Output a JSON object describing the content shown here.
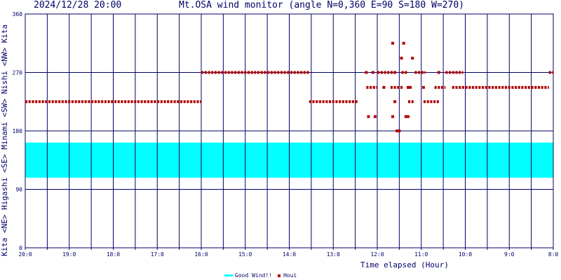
{
  "header": {
    "timestamp": "2024/12/28 20:00",
    "title": "Mt.OSA wind monitor (angle N=0,360 E=90 S=180 W=270)"
  },
  "direction_labels": [
    {
      "text": "Kita <NE> Higashi <SE> Minami <SW> Nishi <NW> Kita"
    }
  ],
  "legend": {
    "good_wind": "Good Wind!!",
    "houi": "Houi"
  },
  "colors": {
    "axis": "#000066",
    "good_band": "#00ffff",
    "houi": "#b00000"
  },
  "chart_data": {
    "type": "scatter",
    "title": "Mt.OSA wind monitor (angle N=0,360 E=90 S=180 W=270)",
    "xlabel": "Time elapsed (Hour)",
    "ylabel": "",
    "x_tick_labels": [
      "20:0",
      "19:0",
      "18:0",
      "17:0",
      "16:0",
      "15:0",
      "14:0",
      "13:0",
      "12:0",
      "11:0",
      "10:0",
      "9:0",
      "8:0"
    ],
    "y_tick_labels": [
      "0",
      "90",
      "180",
      "270",
      "360"
    ],
    "xlim": [
      0,
      12
    ],
    "ylim": [
      0,
      360
    ],
    "grid": true,
    "good_wind_band": [
      108,
      162
    ],
    "series": [
      {
        "name": "Houi",
        "segments": [
          {
            "x": [
              0.0,
              4.0
            ],
            "y": 225
          },
          {
            "x": [
              4.0,
              6.45
            ],
            "y": 270
          },
          {
            "x": [
              6.45,
              7.55
            ],
            "y": 225
          },
          {
            "x": [
              7.75,
              8.0
            ],
            "y": 247
          },
          {
            "x": [
              8.0,
              8.35
            ],
            "y": 270
          },
          {
            "x": [
              8.3,
              8.6
            ],
            "y": 247
          },
          {
            "x": [
              8.55,
              8.7
            ],
            "y": 270
          },
          {
            "x": [
              8.7,
              8.85
            ],
            "y": 225
          },
          {
            "x": [
              8.85,
              9.1
            ],
            "y": 270
          },
          {
            "x": [
              9.05,
              9.4
            ],
            "y": 225
          },
          {
            "x": [
              9.3,
              9.55
            ],
            "y": 247
          },
          {
            "x": [
              9.55,
              9.95
            ],
            "y": 270
          },
          {
            "x": [
              9.7,
              11.9
            ],
            "y": 247
          },
          {
            "x": [
              11.9,
              12.0
            ],
            "y": 270
          }
        ],
        "points": [
          {
            "x": 7.75,
            "y": 270
          },
          {
            "x": 7.9,
            "y": 270
          },
          {
            "x": 7.8,
            "y": 202
          },
          {
            "x": 7.95,
            "y": 202
          },
          {
            "x": 8.15,
            "y": 247
          },
          {
            "x": 8.35,
            "y": 315
          },
          {
            "x": 8.4,
            "y": 225
          },
          {
            "x": 8.35,
            "y": 202
          },
          {
            "x": 8.4,
            "y": 270
          },
          {
            "x": 8.45,
            "y": 180
          },
          {
            "x": 8.5,
            "y": 180
          },
          {
            "x": 8.55,
            "y": 292
          },
          {
            "x": 8.6,
            "y": 315
          },
          {
            "x": 8.65,
            "y": 202
          },
          {
            "x": 8.7,
            "y": 202
          },
          {
            "x": 8.7,
            "y": 247
          },
          {
            "x": 8.75,
            "y": 247
          },
          {
            "x": 8.8,
            "y": 292
          },
          {
            "x": 9.05,
            "y": 247
          },
          {
            "x": 9.4,
            "y": 270
          }
        ]
      }
    ]
  }
}
